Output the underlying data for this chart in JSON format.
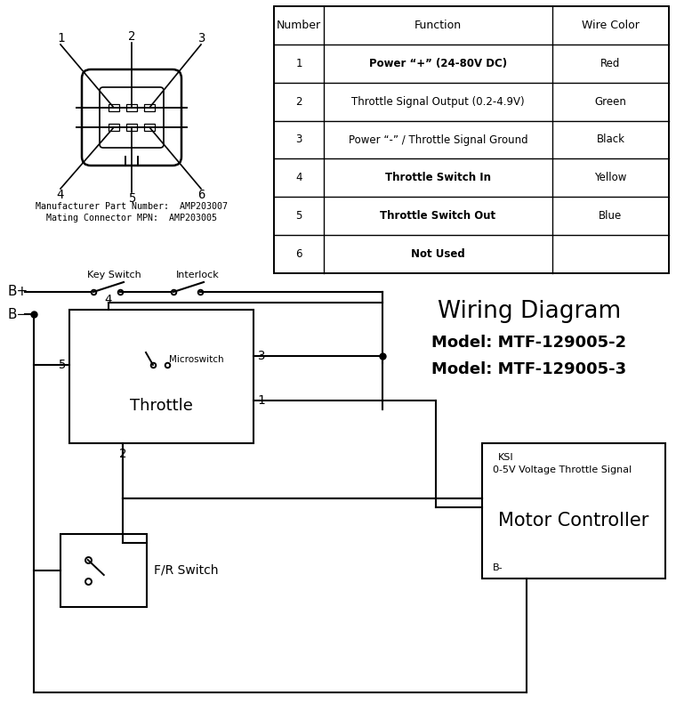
{
  "bg_color": "#ffffff",
  "table": {
    "headers": [
      "Number",
      "Function",
      "Wire Color"
    ],
    "rows": [
      [
        "1",
        "Power “+” (24-80V DC)",
        "Red"
      ],
      [
        "2",
        "Throttle Signal Output (0.2-4.9V)",
        "Green"
      ],
      [
        "3",
        "Power “-” / Throttle Signal Ground",
        "Black"
      ],
      [
        "4",
        "Throttle Switch In",
        "Yellow"
      ],
      [
        "5",
        "Throttle Switch Out",
        "Blue"
      ],
      [
        "6",
        "Not Used",
        ""
      ]
    ],
    "bold_rows": [
      0,
      3,
      4,
      5
    ]
  },
  "connector_text_1": "Manufacturer Part Number:  AMP203007",
  "connector_text_2": "Mating Connector MPN:  AMP203005",
  "wd_title1": "Wiring Diagram",
  "wd_title2": "Model: MTF-129005-2",
  "wd_title3": "Model: MTF-129005-3",
  "mc_label": "Motor Controller",
  "mc_sub1": "KSI",
  "mc_sub2": "0-5V Voltage Throttle Signal",
  "mc_sub3": "B-",
  "throttle_label": "Throttle",
  "microswitch_label": "Microswitch",
  "fr_label": "F/R Switch",
  "bplus": "B+",
  "bminus": "B−",
  "key_switch": "Key Switch",
  "interlock": "Interlock"
}
